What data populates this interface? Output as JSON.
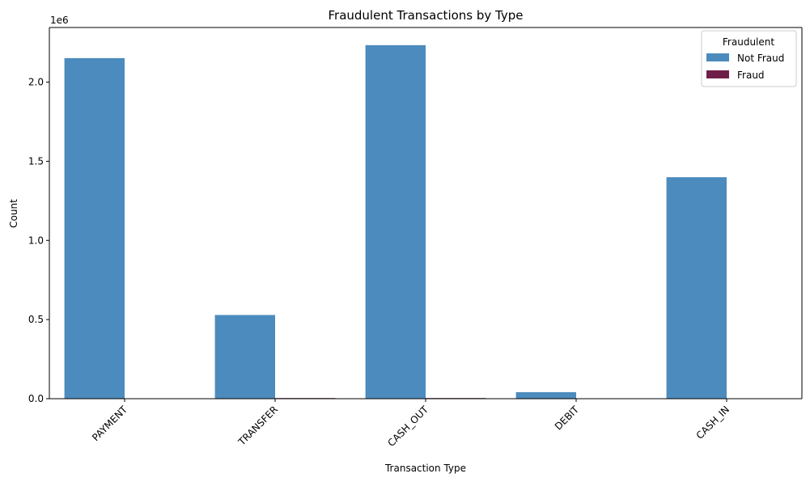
{
  "chart_data": {
    "type": "bar",
    "title": "Fraudulent Transactions by Type",
    "xlabel": "Transaction Type",
    "ylabel": "Count",
    "y_offset_label": "1e6",
    "categories": [
      "PAYMENT",
      "TRANSFER",
      "CASH_OUT",
      "DEBIT",
      "CASH_IN"
    ],
    "series": [
      {
        "name": "Not Fraud",
        "color": "#4c8bbd",
        "values": [
          2151495,
          528812,
          2233384,
          41432,
          1399284
        ]
      },
      {
        "name": "Fraud",
        "color": "#6e1f47",
        "values": [
          0,
          4097,
          4116,
          0,
          0
        ]
      }
    ],
    "ylim": [
      0,
      2345000
    ],
    "yticks": [
      0,
      500000,
      1000000,
      1500000,
      2000000
    ],
    "ytick_labels": [
      "0.0",
      "0.5",
      "1.0",
      "1.5",
      "2.0"
    ],
    "legend": {
      "title": "Fraudulent",
      "placement": "top-right"
    },
    "grid": false
  }
}
